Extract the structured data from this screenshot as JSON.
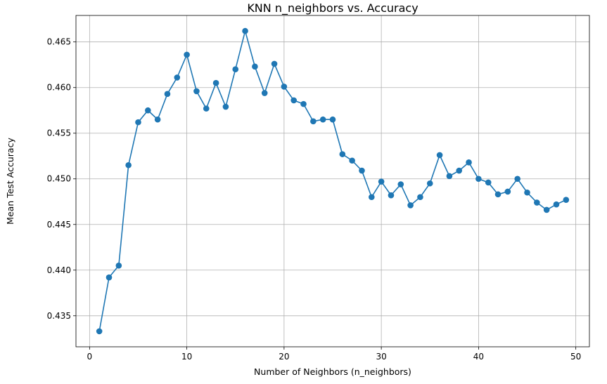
{
  "chart_data": {
    "type": "line",
    "title": "KNN n_neighbors vs. Accuracy",
    "xlabel": "Number of Neighbors (n_neighbors)",
    "ylabel": "Mean Test Accuracy",
    "xlim": [
      -1.4,
      51.4
    ],
    "ylim": [
      0.4316,
      0.4679
    ],
    "xticks": [
      0,
      10,
      20,
      30,
      40,
      50
    ],
    "yticks": [
      0.435,
      0.44,
      0.445,
      0.45,
      0.455,
      0.46,
      0.465
    ],
    "ytick_labels": [
      "0.435",
      "0.440",
      "0.445",
      "0.450",
      "0.455",
      "0.460",
      "0.465"
    ],
    "grid": true,
    "marker": "circle",
    "color": "#1f77b4",
    "x": [
      1,
      2,
      3,
      4,
      5,
      6,
      7,
      8,
      9,
      10,
      11,
      12,
      13,
      14,
      15,
      16,
      17,
      18,
      19,
      20,
      21,
      22,
      23,
      24,
      25,
      26,
      27,
      28,
      29,
      30,
      31,
      32,
      33,
      34,
      35,
      36,
      37,
      38,
      39,
      40,
      41,
      42,
      43,
      44,
      45,
      46,
      47,
      48,
      49
    ],
    "y": [
      0.4333,
      0.4392,
      0.4405,
      0.4515,
      0.4562,
      0.4575,
      0.4565,
      0.4593,
      0.4611,
      0.4636,
      0.4596,
      0.4577,
      0.4605,
      0.4579,
      0.462,
      0.4662,
      0.4623,
      0.4594,
      0.4626,
      0.4601,
      0.4586,
      0.4582,
      0.4563,
      0.4565,
      0.4565,
      0.4527,
      0.452,
      0.4509,
      0.448,
      0.4497,
      0.4482,
      0.4494,
      0.4471,
      0.448,
      0.4495,
      0.4526,
      0.4503,
      0.4509,
      0.4518,
      0.45,
      0.4496,
      0.4483,
      0.4486,
      0.45,
      0.4485,
      0.4474,
      0.4466,
      0.4472,
      0.4477
    ]
  }
}
